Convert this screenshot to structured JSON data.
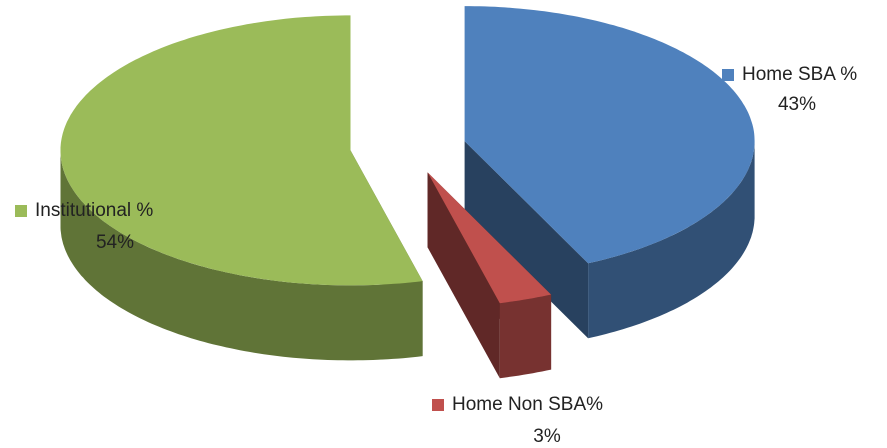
{
  "chart_data": {
    "type": "pie3d",
    "categories": [
      "Home SBA %",
      "Home Non SBA%",
      "Institutional %"
    ],
    "values": [
      43,
      3,
      54
    ],
    "value_labels": [
      "43%",
      "3%",
      "54%"
    ],
    "colors": [
      "#4f81bd",
      "#c0504d",
      "#9bbb59"
    ]
  }
}
